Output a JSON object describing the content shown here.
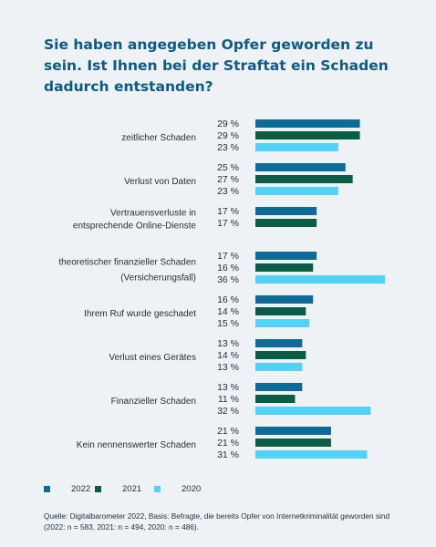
{
  "title": "Sie haben angegeben Opfer geworden zu sein. Ist Ihnen bei der Straftat ein Schaden dadurch entstanden?",
  "colors": {
    "2022": "#0e6a97",
    "2021": "#0b5c45",
    "2020": "#52d2f5"
  },
  "legend": [
    {
      "label": "2022",
      "color": "#0e6a97"
    },
    {
      "label": "2021",
      "color": "#0b5c45"
    },
    {
      "label": "2020",
      "color": "#52d2f5"
    }
  ],
  "source": "Quelle: Digitalbarometer 2022, Basis: Befragte, die bereits Opfer von Internetkriminalität geworden sind (2022: n = 583, 2021: n = 494, 2020: n = 486).",
  "chart_data": {
    "type": "bar",
    "orientation": "horizontal",
    "unit": "%",
    "categories": [
      {
        "label_lines": [
          "zeitlicher Schaden"
        ],
        "values": [
          29,
          29,
          23
        ]
      },
      {
        "label_lines": [
          "Verlust von Daten"
        ],
        "values": [
          25,
          27,
          23
        ]
      },
      {
        "label_lines": [
          "Vertrauensverluste in",
          "entsprechende Online-Dienste"
        ],
        "values": [
          17,
          17,
          null
        ]
      },
      {
        "label_lines": [
          "theoretischer finanzieller Schaden",
          "(Versicherungsfall)"
        ],
        "values": [
          17,
          16,
          36
        ]
      },
      {
        "label_lines": [
          "Ihrem Ruf wurde geschadet"
        ],
        "values": [
          16,
          14,
          15
        ]
      },
      {
        "label_lines": [
          "Verlust eines Gerätes"
        ],
        "values": [
          13,
          14,
          13
        ]
      },
      {
        "label_lines": [
          "Finanzieller Schaden"
        ],
        "values": [
          13,
          11,
          32
        ]
      },
      {
        "label_lines": [
          "Kein nennenswerter Schaden"
        ],
        "values": [
          21,
          21,
          31
        ]
      }
    ],
    "series": [
      "2022",
      "2021",
      "2020"
    ]
  }
}
